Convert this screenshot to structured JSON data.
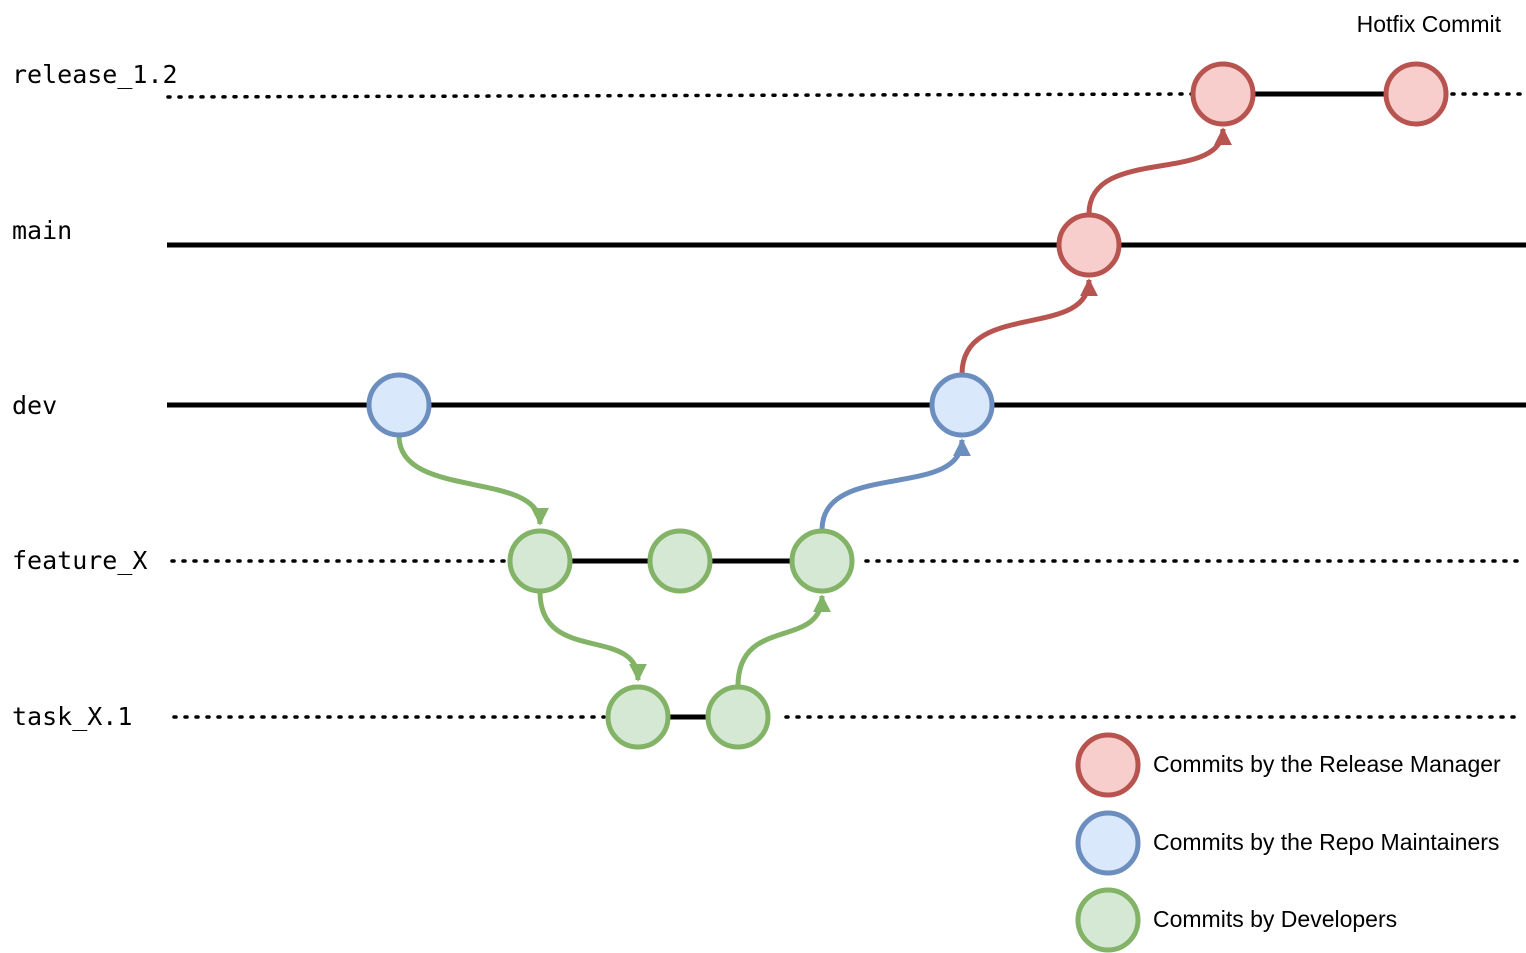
{
  "branches": [
    {
      "id": "release",
      "label": "release_1.2"
    },
    {
      "id": "main",
      "label": "main"
    },
    {
      "id": "dev",
      "label": "dev"
    },
    {
      "id": "feature",
      "label": "feature_X"
    },
    {
      "id": "task",
      "label": "task_X.1"
    }
  ],
  "annotation": {
    "hotfix": "Hotfix Commit"
  },
  "legend": [
    {
      "role": "release-manager",
      "label": "Commits by the Release Manager"
    },
    {
      "role": "repo-maintainers",
      "label": "Commits by the Repo Maintainers"
    },
    {
      "role": "developers",
      "label": "Commits by Developers"
    }
  ],
  "colors": {
    "release_manager": {
      "stroke": "#b85450",
      "fill": "#f8cecc"
    },
    "repo_maintainers": {
      "stroke": "#6c8ebf",
      "fill": "#dae8fc"
    },
    "developers": {
      "stroke": "#82b366",
      "fill": "#d5e8d4"
    },
    "line": "#000000"
  },
  "commits": [
    {
      "id": "dev-1",
      "branch": "dev",
      "role": "repo_maintainers"
    },
    {
      "id": "feature-1",
      "branch": "feature_X",
      "role": "developers"
    },
    {
      "id": "feature-2",
      "branch": "feature_X",
      "role": "developers"
    },
    {
      "id": "feature-3",
      "branch": "feature_X",
      "role": "developers"
    },
    {
      "id": "task-1",
      "branch": "task_X.1",
      "role": "developers"
    },
    {
      "id": "task-2",
      "branch": "task_X.1",
      "role": "developers"
    },
    {
      "id": "dev-2",
      "branch": "dev",
      "role": "repo_maintainers"
    },
    {
      "id": "main-1",
      "branch": "main",
      "role": "release_manager"
    },
    {
      "id": "release-1",
      "branch": "release_1.2",
      "role": "release_manager"
    },
    {
      "id": "release-2",
      "branch": "release_1.2",
      "role": "release_manager"
    }
  ]
}
